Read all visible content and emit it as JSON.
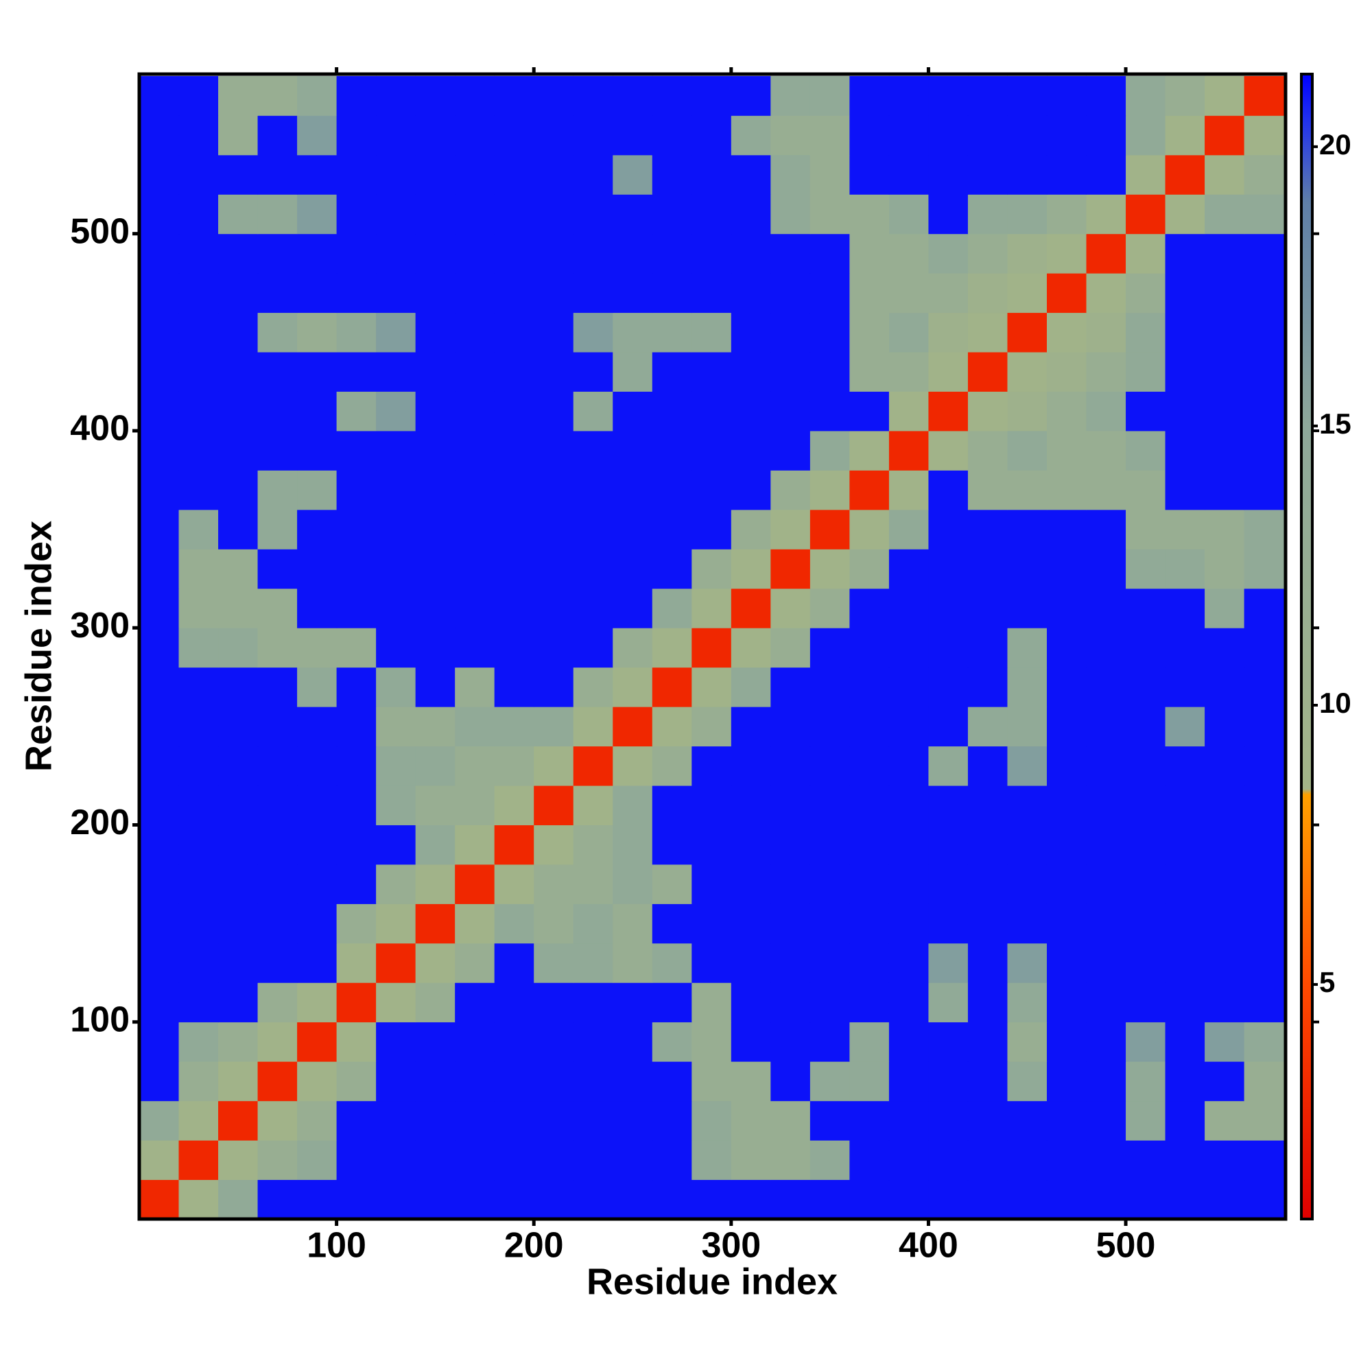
{
  "chart_data": {
    "type": "heatmap",
    "xlabel": "Residue index",
    "ylabel": "Residue index",
    "x_bins": [
      0,
      20,
      40,
      60,
      80,
      100,
      120,
      140,
      160,
      180,
      200,
      220,
      240,
      260,
      280,
      300,
      320,
      340,
      360,
      380,
      400,
      420,
      440,
      460,
      480,
      500,
      520,
      540,
      560,
      580
    ],
    "y_bins": [
      0,
      20,
      40,
      60,
      80,
      100,
      120,
      140,
      160,
      180,
      200,
      220,
      240,
      260,
      280,
      300,
      320,
      340,
      360,
      380,
      400,
      420,
      440,
      460,
      480,
      500,
      520,
      540,
      560,
      580
    ],
    "z": [
      [
        3,
        9,
        14,
        21,
        21,
        21,
        21,
        21,
        21,
        21,
        21,
        21,
        21,
        21,
        21,
        21,
        21,
        21,
        21,
        21,
        21,
        21,
        21,
        21,
        21,
        21,
        21,
        21,
        21
      ],
      [
        9,
        3,
        9,
        12,
        14,
        21,
        21,
        21,
        21,
        21,
        21,
        21,
        21,
        21,
        14,
        12,
        12,
        14,
        21,
        21,
        21,
        21,
        21,
        21,
        21,
        21,
        21,
        21,
        21
      ],
      [
        14,
        9,
        3,
        9,
        12,
        21,
        21,
        21,
        21,
        21,
        21,
        21,
        21,
        21,
        14,
        12,
        12,
        21,
        21,
        21,
        21,
        21,
        21,
        21,
        21,
        14,
        21,
        12,
        12
      ],
      [
        21,
        12,
        9,
        3,
        9,
        12,
        21,
        21,
        21,
        21,
        21,
        21,
        21,
        21,
        12,
        12,
        21,
        14,
        14,
        21,
        21,
        21,
        14,
        21,
        21,
        14,
        21,
        21,
        12
      ],
      [
        21,
        14,
        12,
        9,
        3,
        9,
        21,
        21,
        21,
        21,
        21,
        21,
        21,
        14,
        12,
        21,
        21,
        21,
        14,
        21,
        21,
        21,
        12,
        21,
        21,
        16,
        21,
        16,
        14
      ],
      [
        21,
        21,
        21,
        12,
        9,
        3,
        9,
        12,
        21,
        21,
        21,
        21,
        21,
        21,
        12,
        21,
        21,
        21,
        21,
        21,
        14,
        21,
        14,
        21,
        21,
        21,
        21,
        21,
        21
      ],
      [
        21,
        21,
        21,
        21,
        21,
        9,
        3,
        9,
        12,
        21,
        14,
        14,
        12,
        14,
        21,
        21,
        21,
        21,
        21,
        21,
        16,
        21,
        16,
        21,
        21,
        21,
        21,
        21,
        21
      ],
      [
        21,
        21,
        21,
        21,
        21,
        12,
        9,
        3,
        9,
        14,
        12,
        14,
        12,
        21,
        21,
        21,
        21,
        21,
        21,
        21,
        21,
        21,
        21,
        21,
        21,
        21,
        21,
        21,
        21
      ],
      [
        21,
        21,
        21,
        21,
        21,
        21,
        12,
        9,
        3,
        9,
        12,
        12,
        14,
        12,
        21,
        21,
        21,
        21,
        21,
        21,
        21,
        21,
        21,
        21,
        21,
        21,
        21,
        21,
        21
      ],
      [
        21,
        21,
        21,
        21,
        21,
        21,
        21,
        14,
        9,
        3,
        9,
        12,
        14,
        21,
        21,
        21,
        21,
        21,
        21,
        21,
        21,
        21,
        21,
        21,
        21,
        21,
        21,
        21,
        21
      ],
      [
        21,
        21,
        21,
        21,
        21,
        21,
        14,
        12,
        12,
        9,
        3,
        9,
        14,
        21,
        21,
        21,
        21,
        21,
        21,
        21,
        21,
        21,
        21,
        21,
        21,
        21,
        21,
        21,
        21
      ],
      [
        21,
        21,
        21,
        21,
        21,
        21,
        14,
        14,
        12,
        12,
        9,
        3,
        9,
        12,
        21,
        21,
        21,
        21,
        21,
        21,
        14,
        21,
        16,
        21,
        21,
        21,
        21,
        21,
        21
      ],
      [
        21,
        21,
        21,
        21,
        21,
        21,
        12,
        12,
        14,
        14,
        14,
        9,
        3,
        9,
        12,
        21,
        21,
        21,
        21,
        21,
        21,
        14,
        14,
        21,
        21,
        21,
        16,
        21,
        21
      ],
      [
        21,
        21,
        21,
        21,
        14,
        21,
        14,
        21,
        12,
        21,
        21,
        12,
        9,
        3,
        9,
        14,
        21,
        21,
        21,
        21,
        21,
        21,
        14,
        21,
        21,
        21,
        21,
        21,
        21
      ],
      [
        21,
        14,
        14,
        12,
        12,
        12,
        21,
        21,
        21,
        21,
        21,
        21,
        12,
        9,
        3,
        9,
        12,
        21,
        21,
        21,
        21,
        21,
        14,
        21,
        21,
        21,
        21,
        21,
        21
      ],
      [
        21,
        12,
        12,
        12,
        21,
        21,
        21,
        21,
        21,
        21,
        21,
        21,
        21,
        14,
        9,
        3,
        9,
        12,
        21,
        21,
        21,
        21,
        21,
        21,
        21,
        21,
        21,
        14,
        21
      ],
      [
        21,
        12,
        12,
        21,
        21,
        21,
        21,
        21,
        21,
        21,
        21,
        21,
        21,
        21,
        12,
        9,
        3,
        9,
        12,
        21,
        21,
        21,
        21,
        21,
        21,
        14,
        14,
        12,
        14
      ],
      [
        21,
        14,
        21,
        14,
        21,
        21,
        21,
        21,
        21,
        21,
        21,
        21,
        21,
        21,
        21,
        12,
        9,
        3,
        9,
        14,
        21,
        21,
        21,
        21,
        21,
        12,
        12,
        12,
        14
      ],
      [
        21,
        21,
        21,
        14,
        14,
        21,
        21,
        21,
        21,
        21,
        21,
        21,
        21,
        21,
        21,
        21,
        12,
        9,
        3,
        9,
        21,
        12,
        12,
        12,
        12,
        12,
        21,
        21,
        21
      ],
      [
        21,
        21,
        21,
        21,
        21,
        21,
        21,
        21,
        21,
        21,
        21,
        21,
        21,
        21,
        21,
        21,
        21,
        14,
        9,
        3,
        9,
        12,
        14,
        12,
        12,
        14,
        21,
        21,
        21
      ],
      [
        21,
        21,
        21,
        21,
        21,
        14,
        16,
        21,
        21,
        21,
        21,
        14,
        21,
        21,
        21,
        21,
        21,
        21,
        21,
        9,
        3,
        9,
        10,
        12,
        14,
        21,
        21,
        21,
        21
      ],
      [
        21,
        21,
        21,
        21,
        21,
        21,
        21,
        21,
        21,
        21,
        21,
        21,
        14,
        21,
        21,
        21,
        21,
        21,
        12,
        12,
        9,
        3,
        9,
        10,
        12,
        14,
        21,
        21,
        21
      ],
      [
        21,
        21,
        21,
        14,
        12,
        14,
        16,
        21,
        21,
        21,
        21,
        16,
        14,
        14,
        14,
        21,
        21,
        21,
        12,
        14,
        10,
        9,
        3,
        9,
        10,
        14,
        21,
        21,
        21
      ],
      [
        21,
        21,
        21,
        21,
        21,
        21,
        21,
        21,
        21,
        21,
        21,
        21,
        21,
        21,
        21,
        21,
        21,
        21,
        12,
        12,
        12,
        10,
        9,
        3,
        9,
        12,
        21,
        21,
        21
      ],
      [
        21,
        21,
        21,
        21,
        21,
        21,
        21,
        21,
        21,
        21,
        21,
        21,
        21,
        21,
        21,
        21,
        21,
        21,
        12,
        12,
        14,
        12,
        10,
        9,
        3,
        9,
        21,
        21,
        21
      ],
      [
        21,
        21,
        14,
        14,
        16,
        21,
        21,
        21,
        21,
        21,
        21,
        21,
        21,
        21,
        21,
        21,
        14,
        12,
        12,
        14,
        21,
        14,
        14,
        12,
        9,
        3,
        9,
        14,
        14
      ],
      [
        21,
        21,
        21,
        21,
        21,
        21,
        21,
        21,
        21,
        21,
        21,
        21,
        16,
        21,
        21,
        21,
        14,
        12,
        21,
        21,
        21,
        21,
        21,
        21,
        21,
        9,
        3,
        9,
        12
      ],
      [
        21,
        21,
        12,
        21,
        16,
        21,
        21,
        21,
        21,
        21,
        21,
        21,
        21,
        21,
        21,
        14,
        12,
        12,
        21,
        21,
        21,
        21,
        21,
        21,
        21,
        14,
        9,
        3,
        9
      ],
      [
        21,
        21,
        12,
        12,
        14,
        21,
        21,
        21,
        21,
        21,
        21,
        21,
        21,
        21,
        21,
        21,
        14,
        14,
        21,
        21,
        21,
        21,
        21,
        21,
        21,
        14,
        12,
        9,
        3
      ]
    ],
    "xlim": [
      0,
      581
    ],
    "ylim": [
      0,
      581
    ],
    "xticks": [
      100,
      200,
      300,
      400,
      500
    ],
    "yticks": [
      100,
      200,
      300,
      400,
      500
    ],
    "zlim": [
      0.8,
      21.3
    ],
    "colorbar_ticks": [
      5,
      10,
      15,
      20
    ],
    "colorscale": [
      [
        0.8,
        "#e00000"
      ],
      [
        5,
        "#ff4a00"
      ],
      [
        8.4,
        "#ffa000"
      ],
      [
        8.5,
        "#a3b488"
      ],
      [
        15,
        "#8ea89a"
      ],
      [
        19,
        "#5f7fa8"
      ],
      [
        20.5,
        "#2030f0"
      ],
      [
        21.3,
        "#0000ff"
      ]
    ]
  }
}
